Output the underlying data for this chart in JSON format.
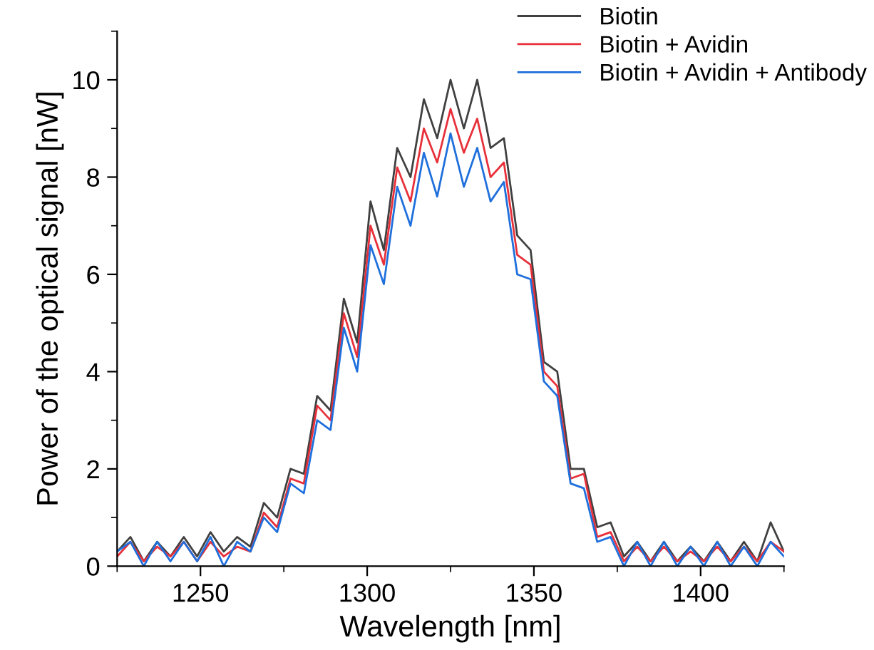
{
  "chart_data": {
    "type": "line",
    "xlabel": "Wavelength [nm]",
    "ylabel": "Power of the optical signal [nW]",
    "x": [
      1225,
      1229,
      1233,
      1237,
      1241,
      1245,
      1249,
      1253,
      1257,
      1261,
      1265,
      1269,
      1273,
      1277,
      1281,
      1285,
      1289,
      1293,
      1297,
      1301,
      1305,
      1309,
      1313,
      1317,
      1321,
      1325,
      1329,
      1333,
      1337,
      1341,
      1345,
      1349,
      1353,
      1357,
      1361,
      1365,
      1369,
      1373,
      1377,
      1381,
      1385,
      1389,
      1393,
      1397,
      1401,
      1405,
      1409,
      1413,
      1417,
      1421,
      1425
    ],
    "series": [
      {
        "name": "Biotin",
        "color": "#404040",
        "values": [
          0.3,
          0.6,
          0.1,
          0.5,
          0.2,
          0.6,
          0.2,
          0.7,
          0.3,
          0.6,
          0.4,
          1.3,
          1.0,
          2.0,
          1.9,
          3.5,
          3.2,
          5.5,
          4.6,
          7.5,
          6.5,
          8.6,
          8.0,
          9.6,
          8.8,
          10.0,
          9.0,
          10.0,
          8.6,
          8.8,
          6.8,
          6.5,
          4.2,
          4.0,
          2.0,
          2.0,
          0.8,
          0.9,
          0.2,
          0.5,
          0.1,
          0.5,
          0.1,
          0.4,
          0.1,
          0.5,
          0.1,
          0.5,
          0.1,
          0.9,
          0.3
        ]
      },
      {
        "name": "Biotin + Avidin",
        "color": "#e8303a",
        "values": [
          0.2,
          0.5,
          0.1,
          0.4,
          0.2,
          0.5,
          0.1,
          0.5,
          0.2,
          0.4,
          0.3,
          1.1,
          0.8,
          1.8,
          1.7,
          3.3,
          3.0,
          5.2,
          4.3,
          7.0,
          6.2,
          8.2,
          7.5,
          9.0,
          8.3,
          9.4,
          8.5,
          9.2,
          8.0,
          8.3,
          6.4,
          6.2,
          4.0,
          3.7,
          1.8,
          1.9,
          0.6,
          0.7,
          0.1,
          0.4,
          0.1,
          0.4,
          0.1,
          0.3,
          0.1,
          0.4,
          0.1,
          0.4,
          0.1,
          0.5,
          0.3
        ]
      },
      {
        "name": "Biotin + Avidin + Antibody",
        "color": "#1f6fdc",
        "values": [
          0.3,
          0.5,
          0.0,
          0.5,
          0.1,
          0.5,
          0.1,
          0.6,
          0.0,
          0.5,
          0.3,
          1.0,
          0.7,
          1.7,
          1.5,
          3.0,
          2.8,
          4.9,
          4.0,
          6.6,
          5.8,
          7.8,
          7.0,
          8.5,
          7.6,
          8.9,
          7.8,
          8.6,
          7.5,
          7.9,
          6.0,
          5.9,
          3.8,
          3.5,
          1.7,
          1.6,
          0.5,
          0.6,
          0.0,
          0.5,
          0.0,
          0.5,
          0.0,
          0.4,
          0.0,
          0.5,
          0.0,
          0.4,
          0.0,
          0.5,
          0.2
        ]
      }
    ],
    "xlim": [
      1225,
      1425
    ],
    "xticks": [
      1250,
      1300,
      1350,
      1400
    ],
    "ylim": [
      0,
      11
    ],
    "yticks": [
      0,
      2,
      4,
      6,
      8,
      10
    ],
    "grid": false,
    "legend": "top right",
    "marker": "none",
    "line_style": "solid"
  }
}
